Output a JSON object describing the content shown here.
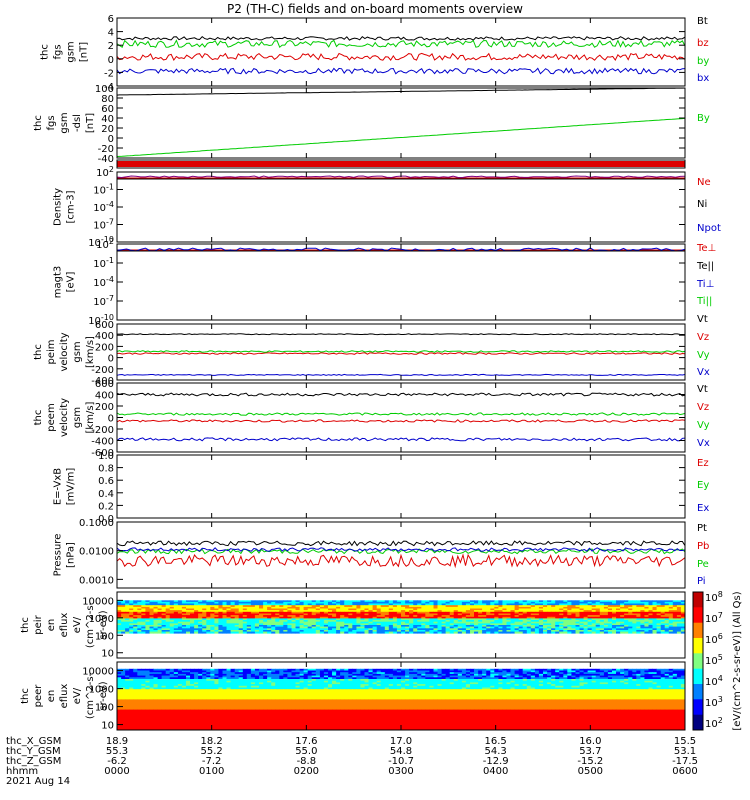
{
  "title": "P2 (TH-C) fields and on-board moments overview",
  "colors": {
    "black": "#000000",
    "red": "#dd0000",
    "green": "#00cc00",
    "blue": "#0000cc",
    "purple": "#800080",
    "orange": "#ff6600"
  },
  "chart_data": [
    {
      "type": "line",
      "id": "fgs",
      "ylabel": [
        "thc",
        "fgs",
        "gsm",
        "[nT]"
      ],
      "ylim": [
        -4,
        6
      ],
      "yticks": [
        "6",
        "4",
        "2",
        "0",
        "-2",
        "-4"
      ],
      "legend": [
        {
          "name": "Bt",
          "color": "black"
        },
        {
          "name": "bz",
          "color": "red"
        },
        {
          "name": "by",
          "color": "green"
        },
        {
          "name": "bx",
          "color": "blue"
        }
      ],
      "series": [
        {
          "name": "Bt",
          "color": "black",
          "base": 3.0,
          "noise": 0.25
        },
        {
          "name": "bz",
          "color": "red",
          "base": 0.3,
          "noise": 0.5
        },
        {
          "name": "by",
          "color": "green",
          "base": 2.2,
          "noise": 0.5
        },
        {
          "name": "bx",
          "color": "blue",
          "base": -1.8,
          "noise": 0.4
        }
      ]
    },
    {
      "type": "line",
      "id": "fgs_dsl",
      "ylabel": [
        "thc",
        "fgs",
        "gsm",
        "-dsl",
        "[nT]"
      ],
      "ylim": [
        -50,
        100
      ],
      "yticks": [
        "100",
        "80",
        "60",
        "40",
        "20",
        "0",
        "-20",
        "-40"
      ],
      "legend": [
        {
          "name": "By",
          "color": "green"
        }
      ],
      "series": [
        {
          "name": "By-black",
          "color": "black",
          "start": 85,
          "end": 100,
          "noise": 0.3
        },
        {
          "name": "By",
          "color": "green",
          "start": -47,
          "end": 35,
          "noise": 0.3
        }
      ]
    },
    {
      "type": "band",
      "id": "flag",
      "ylabel": [],
      "color": "red"
    },
    {
      "type": "line",
      "id": "density",
      "ylabel": [
        "Density",
        "[cm-3]"
      ],
      "yticks": [
        "10^2",
        "10^-1",
        "10^-4",
        "10^-7",
        "10^-10"
      ],
      "legend": [
        {
          "name": "Ne",
          "color": "red"
        },
        {
          "name": "Ni",
          "color": "black"
        },
        {
          "name": "Npot",
          "color": "blue"
        }
      ]
    },
    {
      "type": "line",
      "id": "temp",
      "ylabel": [
        "magt3",
        "[eV]"
      ],
      "yticks": [
        "10^2",
        "10^-1",
        "10^-4",
        "10^-7",
        "10^-10"
      ],
      "legend": [
        {
          "name": "Te⊥",
          "color": "red"
        },
        {
          "name": "Te||",
          "color": "black"
        },
        {
          "name": "Ti⊥",
          "color": "blue"
        },
        {
          "name": "Ti||",
          "color": "green"
        }
      ]
    },
    {
      "type": "line",
      "id": "peim",
      "ylabel": [
        "thc",
        "peim",
        "velocity",
        "gsm",
        "[km/s]"
      ],
      "ylim": [
        -500,
        600
      ],
      "yticks": [
        "600",
        "400",
        "200",
        "0",
        "-200",
        "-400"
      ],
      "legend": [
        {
          "name": "Vt",
          "color": "black"
        },
        {
          "name": "Vz",
          "color": "red"
        },
        {
          "name": "Vy",
          "color": "green"
        },
        {
          "name": "Vx",
          "color": "blue"
        }
      ],
      "series": [
        {
          "name": "Vt",
          "color": "black",
          "base": 400,
          "noise": 8
        },
        {
          "name": "Vz",
          "color": "red",
          "base": 20,
          "noise": 15
        },
        {
          "name": "Vy",
          "color": "green",
          "base": 60,
          "noise": 15
        },
        {
          "name": "Vx",
          "color": "blue",
          "base": -400,
          "noise": 10
        }
      ]
    },
    {
      "type": "line",
      "id": "peem",
      "ylabel": [
        "thc",
        "peem",
        "velocity",
        "gsm",
        "[km/s]"
      ],
      "ylim": [
        -600,
        600
      ],
      "yticks": [
        "600",
        "400",
        "200",
        "0",
        "-200",
        "-400",
        "-600"
      ],
      "legend": [
        {
          "name": "Vt",
          "color": "black"
        },
        {
          "name": "Vz",
          "color": "red"
        },
        {
          "name": "Vy",
          "color": "green"
        },
        {
          "name": "Vx",
          "color": "blue"
        }
      ],
      "series": [
        {
          "name": "Vt",
          "color": "black",
          "base": 400,
          "noise": 25
        },
        {
          "name": "Vz",
          "color": "red",
          "base": -60,
          "noise": 20
        },
        {
          "name": "Vy",
          "color": "green",
          "base": 60,
          "noise": 20
        },
        {
          "name": "Vx",
          "color": "blue",
          "base": -380,
          "noise": 25
        }
      ]
    },
    {
      "type": "line",
      "id": "efield",
      "ylabel": [
        "E=-VxB",
        "[mV/m]"
      ],
      "ylim": [
        0,
        1
      ],
      "yticks": [
        "1.0",
        "0.8",
        "0.6",
        "0.4",
        "0.2",
        "0.0"
      ],
      "legend": [
        {
          "name": "Ez",
          "color": "red"
        },
        {
          "name": "Ey",
          "color": "green"
        },
        {
          "name": "Ex",
          "color": "blue"
        }
      ],
      "series": []
    },
    {
      "type": "line",
      "id": "pressure",
      "ylabel": [
        "Pressure",
        "[nPa]"
      ],
      "yscale": "log",
      "ylim": [
        0.0005,
        0.1
      ],
      "yticks": [
        "0.1000",
        "0.0100",
        "0.0010"
      ],
      "legend": [
        {
          "name": "Pt",
          "color": "black"
        },
        {
          "name": "Pb",
          "color": "red"
        },
        {
          "name": "Pe",
          "color": "green"
        },
        {
          "name": "Pi",
          "color": "blue"
        }
      ],
      "series": [
        {
          "name": "Pt",
          "color": "black",
          "base": 0.018,
          "noise": 0.08
        },
        {
          "name": "Pb",
          "color": "red",
          "base": 0.0045,
          "noise": 0.2
        },
        {
          "name": "Pe",
          "color": "green",
          "base": 0.0095,
          "noise": 0.08
        },
        {
          "name": "Pi",
          "color": "blue",
          "base": 0.011,
          "noise": 0.06
        }
      ]
    },
    {
      "type": "heatmap",
      "id": "peir",
      "ylabel": [
        "thc",
        "peir",
        "en",
        "eflux",
        "eV/",
        "(cm^2-s-",
        "sr-eV)"
      ],
      "yscale": "log",
      "ylim": [
        5,
        30000
      ],
      "yticks": [
        "10000",
        "1000",
        "100",
        "10"
      ]
    },
    {
      "type": "heatmap",
      "id": "peer",
      "ylabel": [
        "thc",
        "peer",
        "en",
        "eflux",
        "eV/",
        "(cm^2-s-",
        "sr-eV)"
      ],
      "yscale": "log",
      "ylim": [
        5,
        30000
      ],
      "yticks": [
        "10000",
        "1000",
        "100",
        "10"
      ]
    }
  ],
  "colorbar": {
    "label": "[eV/(cm^2-s-sr-eV)] (All Qs)",
    "ticks": [
      "10^8",
      "10^7",
      "10^6",
      "10^5",
      "10^4",
      "10^3",
      "10^2"
    ]
  },
  "xaxis": {
    "ticks": [
      "0000",
      "0100",
      "0200",
      "0300",
      "0400",
      "0500",
      "0600"
    ],
    "rows": [
      {
        "label": "thc_X_GSM",
        "values": [
          "18.9",
          "18.2",
          "17.6",
          "17.0",
          "16.5",
          "16.0",
          "15.5"
        ]
      },
      {
        "label": "thc_Y_GSM",
        "values": [
          "55.3",
          "55.2",
          "55.0",
          "54.8",
          "54.3",
          "53.7",
          "53.1"
        ]
      },
      {
        "label": "thc_Z_GSM",
        "values": [
          "-6.2",
          "-7.2",
          "-8.8",
          "-10.7",
          "-12.9",
          "-15.2",
          "-17.5"
        ]
      },
      {
        "label": "hhmm",
        "values": [
          "0000",
          "0100",
          "0200",
          "0300",
          "0400",
          "0500",
          "0600"
        ]
      }
    ],
    "date": "2021 Aug 14"
  }
}
